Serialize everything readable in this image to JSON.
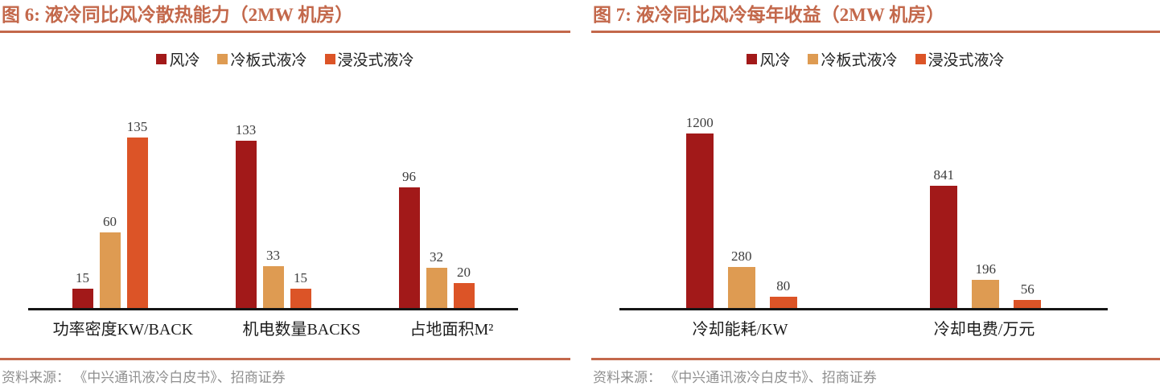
{
  "colors": {
    "series": [
      "#A21919",
      "#DE9B52",
      "#DC5427"
    ],
    "title": "#C3684B",
    "axis": "#161616",
    "value_label": "#3d3d3d",
    "source_text": "#8f8f8f"
  },
  "chart_data": [
    {
      "type": "bar",
      "title": "图 6:  液冷同比风冷散热能力（2MW 机房）",
      "categories": [
        "功率密度KW/BACK",
        "机电数量BACKS",
        "占地面积M²"
      ],
      "series": [
        {
          "name": "风冷",
          "values": [
            15,
            133,
            96
          ]
        },
        {
          "name": "冷板式液冷",
          "values": [
            60,
            33,
            32
          ]
        },
        {
          "name": "浸没式液冷",
          "values": [
            135,
            15,
            20
          ]
        }
      ],
      "ylim": [
        0,
        180
      ],
      "grid": false,
      "value_labels": true,
      "legend_position": "top",
      "source": "资料来源： 《中兴通讯液冷白皮书》、招商证券"
    },
    {
      "type": "bar",
      "title": "图 7:  液冷同比风冷每年收益（2MW 机房）",
      "categories": [
        "冷却能耗/KW",
        "冷却电费/万元"
      ],
      "series": [
        {
          "name": "风冷",
          "values": [
            1200,
            841
          ]
        },
        {
          "name": "冷板式液冷",
          "values": [
            280,
            196
          ]
        },
        {
          "name": "浸没式液冷",
          "values": [
            80,
            56
          ]
        }
      ],
      "ylim": [
        0,
        1560
      ],
      "grid": false,
      "value_labels": true,
      "legend_position": "top",
      "source": "资料来源： 《中兴通讯液冷白皮书》、招商证券"
    }
  ]
}
